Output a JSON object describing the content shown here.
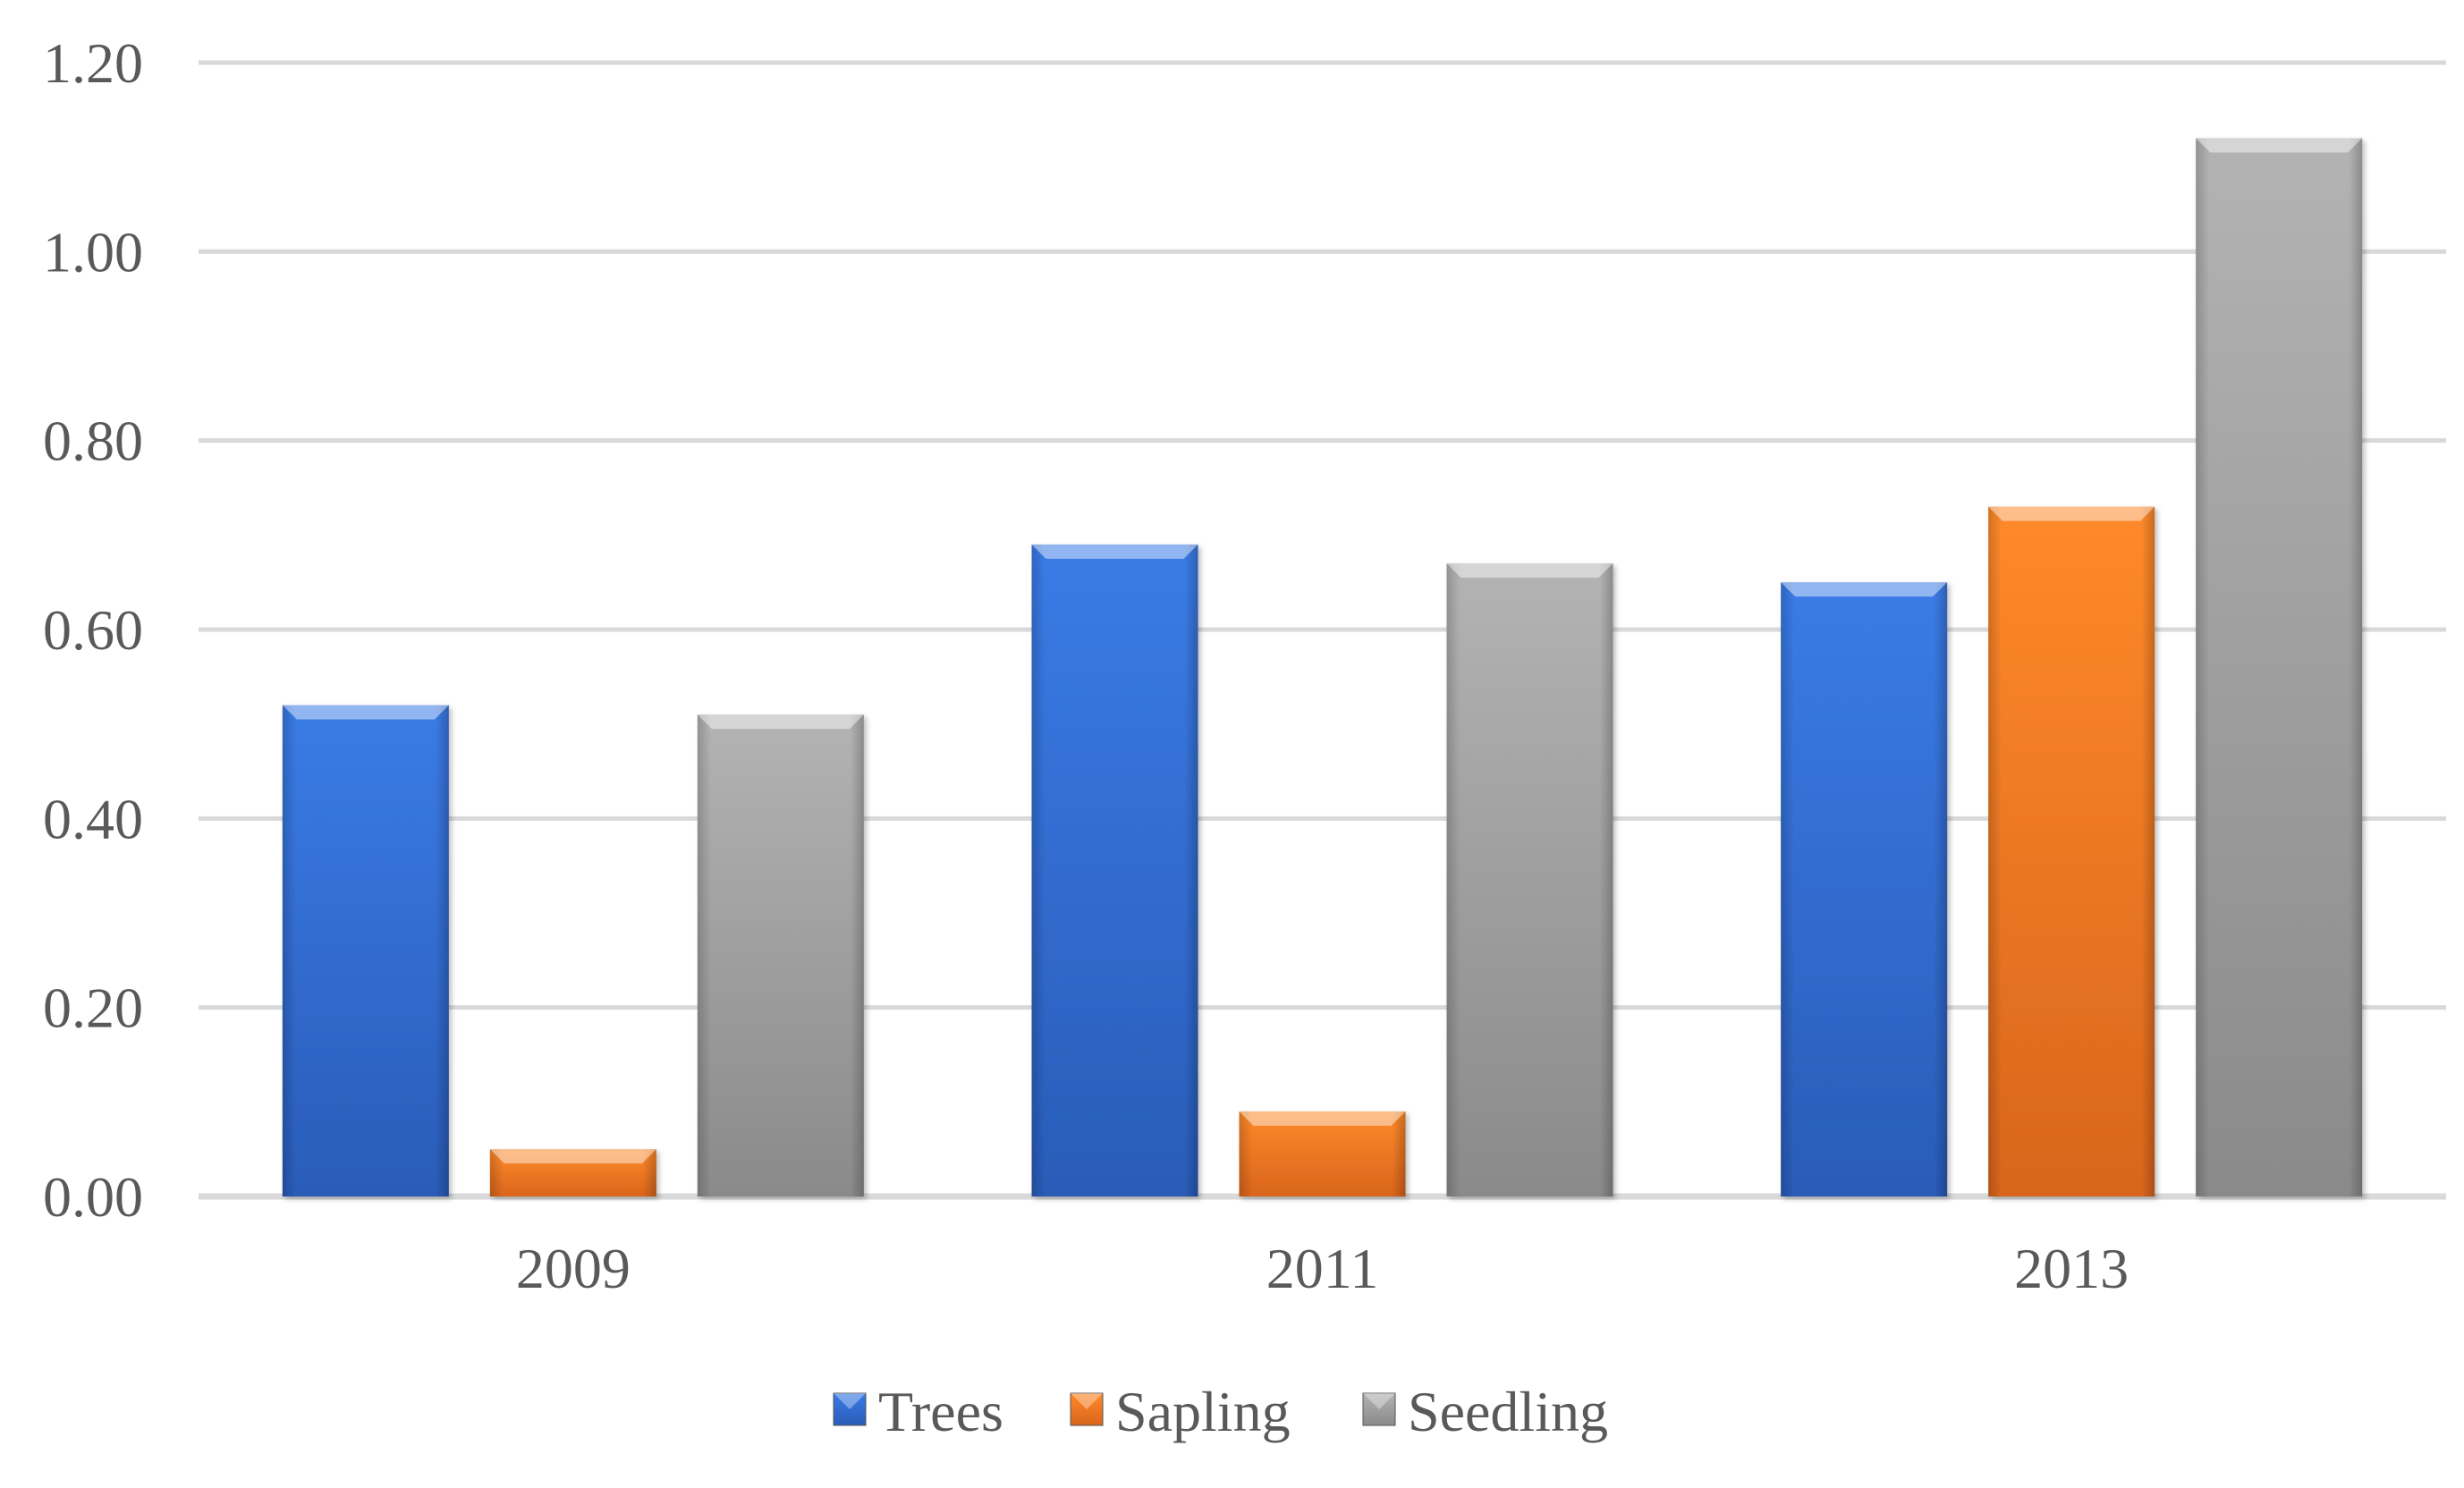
{
  "chart_data": {
    "type": "bar",
    "categories": [
      "2009",
      "2011",
      "2013"
    ],
    "series": [
      {
        "name": "Trees",
        "values": [
          0.52,
          0.69,
          0.65
        ],
        "color": "#2e6fd8"
      },
      {
        "name": "Sapling",
        "values": [
          0.05,
          0.09,
          0.73
        ],
        "color": "#ed7d31"
      },
      {
        "name": "Seedling",
        "values": [
          0.51,
          0.67,
          1.12
        ],
        "color": "#a5a5a5"
      }
    ],
    "title": "",
    "xlabel": "",
    "ylabel": "",
    "ylim": [
      0,
      1.2
    ],
    "yticks": [
      "0.00",
      "0.20",
      "0.40",
      "0.60",
      "0.80",
      "1.00",
      "1.20"
    ],
    "grid": true,
    "legend_position": "bottom"
  }
}
